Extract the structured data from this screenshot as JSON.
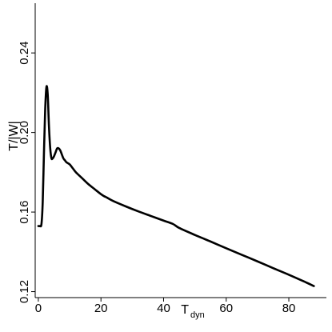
{
  "chart_data": {
    "type": "line",
    "title": "",
    "xlabel": "T",
    "xlabel_subscript": "dyn",
    "ylabel": "T/|W|",
    "xlim": [
      -1,
      92
    ],
    "ylim": [
      0.117,
      0.265
    ],
    "x_ticks": [
      0,
      20,
      40,
      60,
      80
    ],
    "x_tick_labels": [
      "0",
      "20",
      "40",
      "60",
      "80"
    ],
    "y_ticks": [
      0.12,
      0.16,
      0.2,
      0.24
    ],
    "y_tick_labels": [
      "0.12",
      "0.16",
      "0.20",
      "0.24"
    ],
    "grid": false,
    "legend": "none",
    "series": [
      {
        "color": "#000000",
        "x": [
          0.0,
          0.5,
          1.0,
          1.4,
          1.8,
          2.2,
          2.6,
          3.0,
          3.4,
          3.8,
          4.2,
          4.6,
          5.0,
          5.5,
          6.0,
          6.5,
          7.0,
          7.5,
          8.0,
          8.5,
          9.0,
          10.0,
          11.0,
          12.0,
          14.0,
          16.0,
          18.0,
          20.0,
          21.0,
          22.0,
          24.0,
          28.0,
          32.0,
          36.0,
          40.0,
          43.0,
          45.0,
          50.0,
          55.0,
          60.0,
          65.0,
          70.0,
          75.0,
          80.0,
          85.0,
          88.0
        ],
        "y": [
          0.153,
          0.153,
          0.154,
          0.165,
          0.19,
          0.212,
          0.223,
          0.219,
          0.203,
          0.192,
          0.187,
          0.187,
          0.188,
          0.19,
          0.192,
          0.192,
          0.191,
          0.189,
          0.187,
          0.186,
          0.185,
          0.184,
          0.182,
          0.18,
          0.177,
          0.174,
          0.1715,
          0.169,
          0.168,
          0.1672,
          0.1655,
          0.1628,
          0.1603,
          0.158,
          0.1557,
          0.154,
          0.152,
          0.1485,
          0.1452,
          0.1418,
          0.1385,
          0.1352,
          0.1318,
          0.1285,
          0.125,
          0.1228
        ]
      }
    ]
  }
}
